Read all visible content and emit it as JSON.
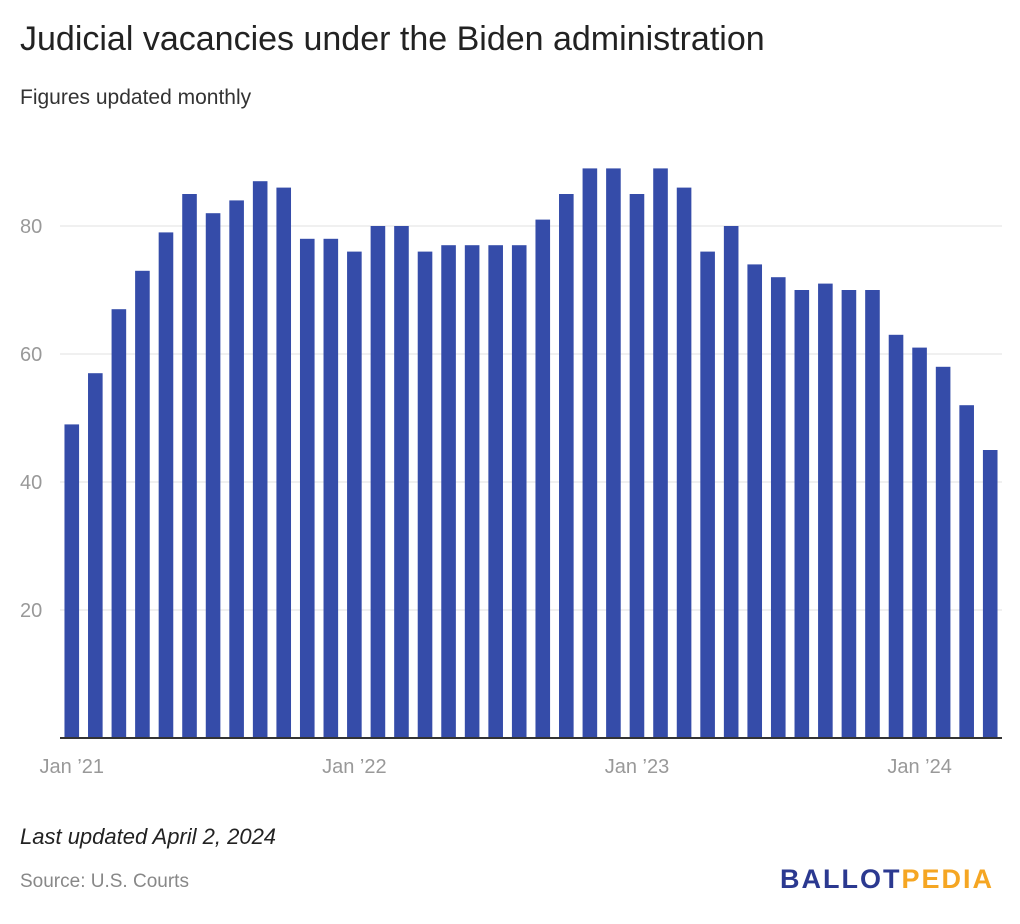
{
  "header": {
    "title": "Judicial vacancies under the Biden administration",
    "subtitle": "Figures updated monthly"
  },
  "footer": {
    "note": "Last updated April 2, 2024",
    "source": "Source: U.S. Courts",
    "logo_part1": "BALLOT",
    "logo_part2": "PEDIA"
  },
  "colors": {
    "bar": "#354ca9",
    "grid": "#e2e2e2",
    "tick_text": "#999999",
    "logo_blue": "#2b3990",
    "logo_orange": "#f5a623"
  },
  "chart_data": {
    "type": "bar",
    "title": "Judicial vacancies under the Biden administration",
    "subtitle": "Figures updated monthly",
    "xlabel": "",
    "ylabel": "",
    "ylim": [
      0,
      95
    ],
    "yticks": [
      20,
      40,
      60,
      80
    ],
    "grid": true,
    "categories": [
      "Jan 2021",
      "Feb 2021",
      "Mar 2021",
      "Apr 2021",
      "May 2021",
      "Jun 2021",
      "Jul 2021",
      "Aug 2021",
      "Sep 2021",
      "Oct 2021",
      "Nov 2021",
      "Dec 2021",
      "Jan 2022",
      "Feb 2022",
      "Mar 2022",
      "Apr 2022",
      "May 2022",
      "Jun 2022",
      "Jul 2022",
      "Aug 2022",
      "Sep 2022",
      "Oct 2022",
      "Nov 2022",
      "Dec 2022",
      "Jan 2023",
      "Feb 2023",
      "Mar 2023",
      "Apr 2023",
      "May 2023",
      "Jun 2023",
      "Jul 2023",
      "Aug 2023",
      "Sep 2023",
      "Oct 2023",
      "Nov 2023",
      "Dec 2023",
      "Jan 2024",
      "Feb 2024",
      "Mar 2024",
      "Apr 2024"
    ],
    "values": [
      49,
      57,
      67,
      73,
      79,
      85,
      82,
      84,
      87,
      86,
      78,
      78,
      76,
      80,
      80,
      76,
      77,
      77,
      77,
      77,
      81,
      85,
      89,
      89,
      85,
      89,
      86,
      76,
      80,
      74,
      72,
      70,
      71,
      70,
      70,
      63,
      61,
      58,
      52,
      45
    ],
    "xtick_labels": [
      {
        "index": 0,
        "label": "Jan ’21"
      },
      {
        "index": 12,
        "label": "Jan ’22"
      },
      {
        "index": 24,
        "label": "Jan ’23"
      },
      {
        "index": 36,
        "label": "Jan ’24"
      }
    ]
  }
}
